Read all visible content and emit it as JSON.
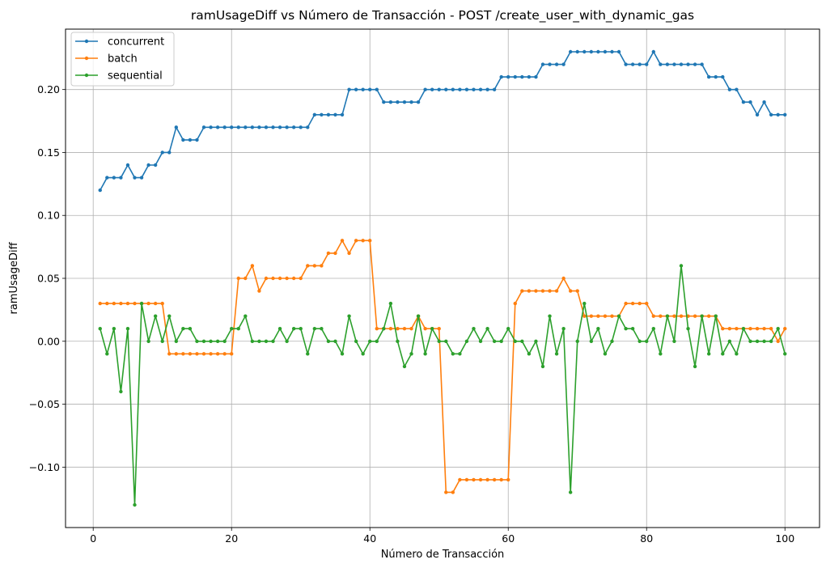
{
  "chart_data": {
    "type": "line",
    "title": "ramUsageDiff vs Número de Transacción - POST /create_user_with_dynamic_gas",
    "xlabel": "Número de Transacción",
    "ylabel": "ramUsageDiff",
    "xlim": [
      -4,
      105
    ],
    "ylim": [
      -0.148,
      0.248
    ],
    "xticks": [
      0,
      20,
      40,
      60,
      80,
      100
    ],
    "xtick_labels": [
      "0",
      "20",
      "40",
      "60",
      "80",
      "100"
    ],
    "yticks": [
      -0.1,
      -0.05,
      0.0,
      0.05,
      0.1,
      0.15,
      0.2
    ],
    "ytick_labels": [
      "−0.10",
      "−0.05",
      "0.00",
      "0.05",
      "0.10",
      "0.15",
      "0.20"
    ],
    "grid": true,
    "legend_position": "top-left",
    "marker": "circle",
    "series": [
      {
        "name": "concurrent",
        "color": "#1f77b4",
        "values": [
          0.12,
          0.13,
          0.13,
          0.13,
          0.14,
          0.13,
          0.13,
          0.14,
          0.14,
          0.15,
          0.15,
          0.17,
          0.16,
          0.16,
          0.16,
          0.17,
          0.17,
          0.17,
          0.17,
          0.17,
          0.17,
          0.17,
          0.17,
          0.17,
          0.17,
          0.17,
          0.17,
          0.17,
          0.17,
          0.17,
          0.17,
          0.18,
          0.18,
          0.18,
          0.18,
          0.18,
          0.2,
          0.2,
          0.2,
          0.2,
          0.2,
          0.19,
          0.19,
          0.19,
          0.19,
          0.19,
          0.19,
          0.2,
          0.2,
          0.2,
          0.2,
          0.2,
          0.2,
          0.2,
          0.2,
          0.2,
          0.2,
          0.2,
          0.21,
          0.21,
          0.21,
          0.21,
          0.21,
          0.21,
          0.22,
          0.22,
          0.22,
          0.22,
          0.23,
          0.23,
          0.23,
          0.23,
          0.23,
          0.23,
          0.23,
          0.23,
          0.22,
          0.22,
          0.22,
          0.22,
          0.23,
          0.22,
          0.22,
          0.22,
          0.22,
          0.22,
          0.22,
          0.22,
          0.21,
          0.21,
          0.21,
          0.2,
          0.2,
          0.19,
          0.19,
          0.18,
          0.19,
          0.18,
          0.18,
          0.18
        ]
      },
      {
        "name": "batch",
        "color": "#ff7f0e",
        "values": [
          0.03,
          0.03,
          0.03,
          0.03,
          0.03,
          0.03,
          0.03,
          0.03,
          0.03,
          0.03,
          -0.01,
          -0.01,
          -0.01,
          -0.01,
          -0.01,
          -0.01,
          -0.01,
          -0.01,
          -0.01,
          -0.01,
          0.05,
          0.05,
          0.06,
          0.04,
          0.05,
          0.05,
          0.05,
          0.05,
          0.05,
          0.05,
          0.06,
          0.06,
          0.06,
          0.07,
          0.07,
          0.08,
          0.07,
          0.08,
          0.08,
          0.08,
          0.01,
          0.01,
          0.01,
          0.01,
          0.01,
          0.01,
          0.02,
          0.01,
          0.01,
          0.01,
          -0.12,
          -0.12,
          -0.11,
          -0.11,
          -0.11,
          -0.11,
          -0.11,
          -0.11,
          -0.11,
          -0.11,
          0.03,
          0.04,
          0.04,
          0.04,
          0.04,
          0.04,
          0.04,
          0.05,
          0.04,
          0.04,
          0.02,
          0.02,
          0.02,
          0.02,
          0.02,
          0.02,
          0.03,
          0.03,
          0.03,
          0.03,
          0.02,
          0.02,
          0.02,
          0.02,
          0.02,
          0.02,
          0.02,
          0.02,
          0.02,
          0.02,
          0.01,
          0.01,
          0.01,
          0.01,
          0.01,
          0.01,
          0.01,
          0.01,
          0.0,
          0.01
        ]
      },
      {
        "name": "sequential",
        "color": "#2ca02c",
        "values": [
          0.01,
          -0.01,
          0.01,
          -0.04,
          0.01,
          -0.13,
          0.03,
          0.0,
          0.02,
          0.0,
          0.02,
          0.0,
          0.01,
          0.01,
          0.0,
          0.0,
          0.0,
          0.0,
          0.0,
          0.01,
          0.01,
          0.02,
          0.0,
          0.0,
          0.0,
          0.0,
          0.01,
          0.0,
          0.01,
          0.01,
          -0.01,
          0.01,
          0.01,
          0.0,
          0.0,
          -0.01,
          0.02,
          0.0,
          -0.01,
          0.0,
          0.0,
          0.01,
          0.03,
          0.0,
          -0.02,
          -0.01,
          0.02,
          -0.01,
          0.01,
          0.0,
          0.0,
          -0.01,
          -0.01,
          0.0,
          0.01,
          0.0,
          0.01,
          0.0,
          0.0,
          0.01,
          0.0,
          0.0,
          -0.01,
          0.0,
          -0.02,
          0.02,
          -0.01,
          0.01,
          -0.12,
          0.0,
          0.03,
          0.0,
          0.01,
          -0.01,
          0.0,
          0.02,
          0.01,
          0.01,
          0.0,
          0.0,
          0.01,
          -0.01,
          0.02,
          0.0,
          0.06,
          0.01,
          -0.02,
          0.02,
          -0.01,
          0.02,
          -0.01,
          0.0,
          -0.01,
          0.01,
          0.0,
          0.0,
          0.0,
          0.0,
          0.01,
          -0.01
        ]
      }
    ]
  }
}
